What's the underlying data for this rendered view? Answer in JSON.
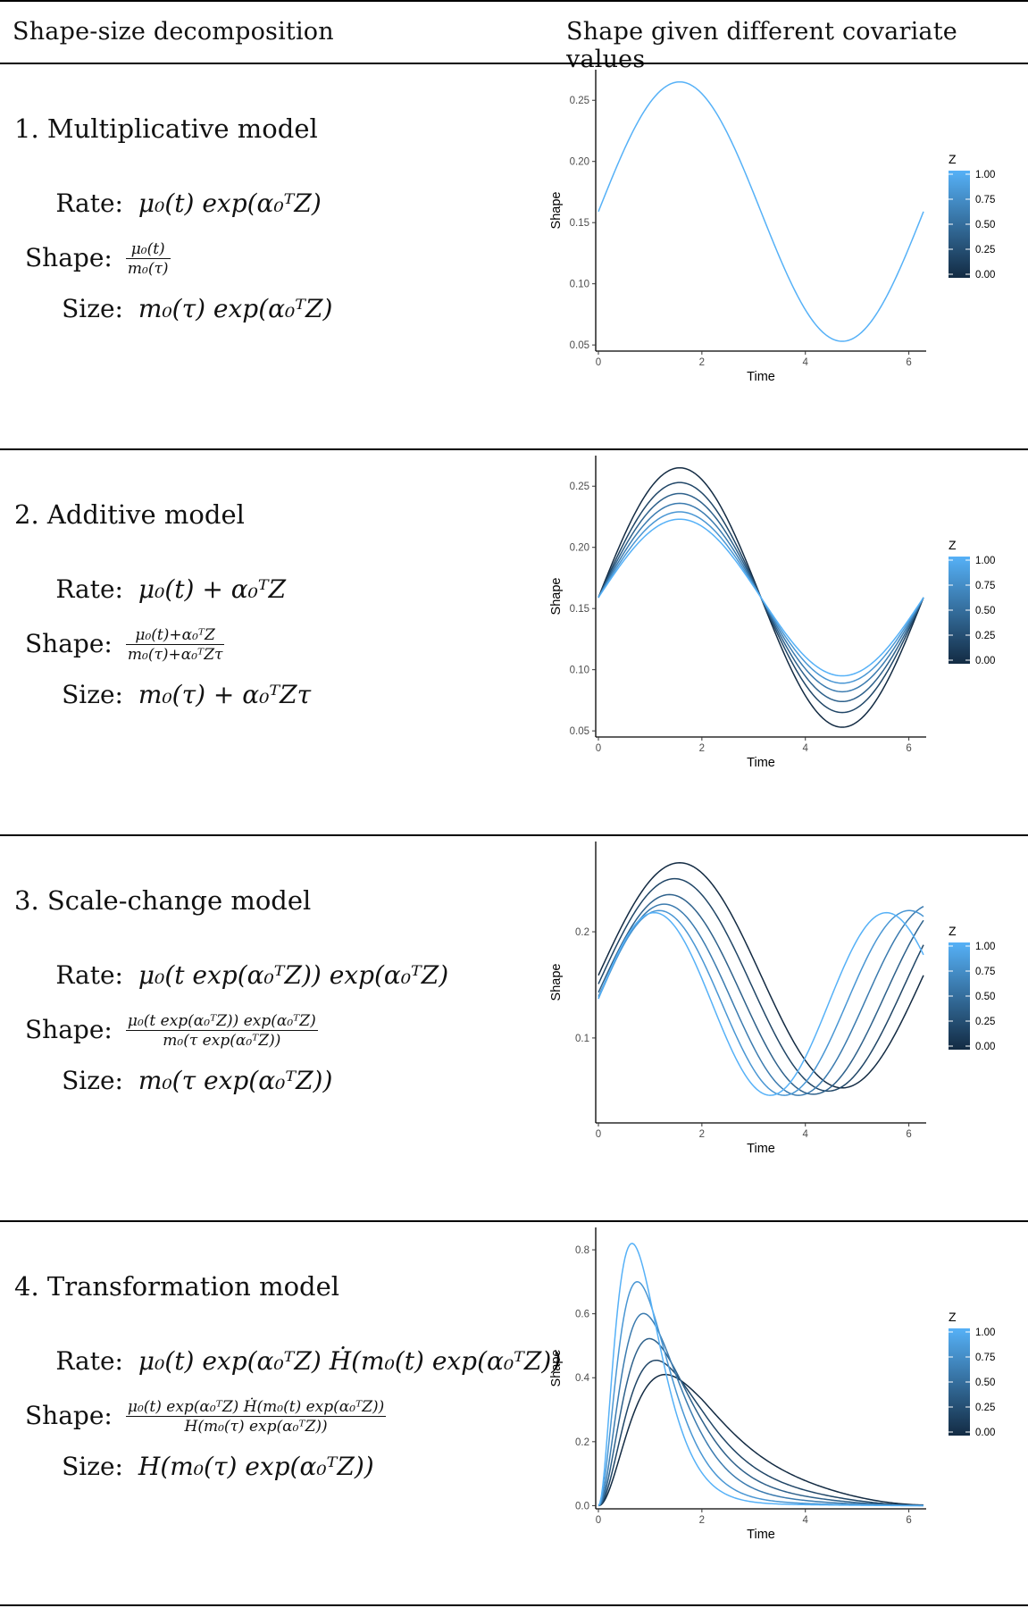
{
  "header": {
    "left": "Shape-size decomposition",
    "right": "Shape given different covariate values"
  },
  "colors": {
    "low": "#132B43",
    "high": "#56B1F7"
  },
  "models": [
    {
      "title": "1.  Multiplicative model",
      "rate_label": "Rate:",
      "rate": "μ₀(t) exp(α₀ᵀZ)",
      "shape_label": "Shape:",
      "shape_num": "μ₀(t)",
      "shape_den": "m₀(τ)",
      "size_label": "Size:",
      "size": "m₀(τ) exp(α₀ᵀZ)",
      "chart_data": {
        "type": "line",
        "x_function": "sin",
        "xlim": [
          0,
          6.2832
        ],
        "ylim": [
          0.045,
          0.275
        ],
        "xlabel": "Time",
        "ylabel": "Shape",
        "xticks": [
          0,
          2,
          4,
          6
        ],
        "yticks": [
          0.05,
          0.1,
          0.15,
          0.2,
          0.25
        ],
        "ytick_labels": [
          "0.05",
          "0.10",
          "0.15",
          "0.20",
          "0.25"
        ],
        "series": [
          {
            "z": 1.0,
            "amplitude": 0.106,
            "center": 0.159
          }
        ],
        "legend": {
          "title": "Z",
          "labels": [
            "1.00",
            "0.75",
            "0.50",
            "0.25",
            "0.00"
          ],
          "placement": "right"
        }
      }
    },
    {
      "title": "2.  Additive model",
      "rate_label": "Rate:",
      "rate": "μ₀(t) + α₀ᵀZ",
      "shape_label": "Shape:",
      "shape_num": "μ₀(t)+α₀ᵀZ",
      "shape_den": "m₀(τ)+α₀ᵀZτ",
      "size_label": "Size:",
      "size": "m₀(τ) + α₀ᵀZτ",
      "chart_data": {
        "type": "line",
        "xlim": [
          0,
          6.2832
        ],
        "ylim": [
          0.045,
          0.275
        ],
        "xlabel": "Time",
        "ylabel": "Shape",
        "xticks": [
          0,
          2,
          4,
          6
        ],
        "yticks": [
          0.05,
          0.1,
          0.15,
          0.2,
          0.25
        ],
        "ytick_labels": [
          "0.05",
          "0.10",
          "0.15",
          "0.20",
          "0.25"
        ],
        "series": [
          {
            "z": 0.0,
            "amplitude": 0.106,
            "center": 0.159
          },
          {
            "z": 0.2,
            "amplitude": 0.094,
            "center": 0.159
          },
          {
            "z": 0.4,
            "amplitude": 0.085,
            "center": 0.159
          },
          {
            "z": 0.6,
            "amplitude": 0.077,
            "center": 0.159
          },
          {
            "z": 0.8,
            "amplitude": 0.07,
            "center": 0.159
          },
          {
            "z": 1.0,
            "amplitude": 0.064,
            "center": 0.159
          }
        ],
        "legend": {
          "title": "Z",
          "labels": [
            "1.00",
            "0.75",
            "0.50",
            "0.25",
            "0.00"
          ],
          "placement": "right"
        }
      }
    },
    {
      "title": "3.  Scale-change model",
      "rate_label": "Rate:",
      "rate": "μ₀(t exp(α₀ᵀZ)) exp(α₀ᵀZ)",
      "shape_label": "Shape:",
      "shape_num": "μ₀(t exp(α₀ᵀZ)) exp(α₀ᵀZ)",
      "shape_den": "m₀(τ exp(α₀ᵀZ))",
      "size_label": "Size:",
      "size": "m₀(τ exp(α₀ᵀZ))",
      "chart_data": {
        "type": "line",
        "xlim": [
          0,
          6.2832
        ],
        "ylim": [
          0.02,
          0.285
        ],
        "xlabel": "Time",
        "ylabel": "Shape",
        "xticks": [
          0,
          2,
          4,
          6
        ],
        "yticks": [
          0.1,
          0.2
        ],
        "ytick_labels": [
          "0.1",
          "0.2"
        ],
        "series": [
          {
            "z": 0.0,
            "scale": 1.0,
            "amplitude": 0.106,
            "center": 0.159
          },
          {
            "z": 0.2,
            "scale": 1.06,
            "amplitude": 0.1,
            "center": 0.15
          },
          {
            "z": 0.4,
            "scale": 1.13,
            "amplitude": 0.094,
            "center": 0.141
          },
          {
            "z": 0.6,
            "scale": 1.21,
            "amplitude": 0.09,
            "center": 0.136
          },
          {
            "z": 0.8,
            "scale": 1.3,
            "amplitude": 0.087,
            "center": 0.133
          },
          {
            "z": 1.0,
            "scale": 1.4,
            "amplitude": 0.086,
            "center": 0.132
          }
        ],
        "legend": {
          "title": "Z",
          "labels": [
            "1.00",
            "0.75",
            "0.50",
            "0.25",
            "0.00"
          ],
          "placement": "right"
        }
      }
    },
    {
      "title": "4.  Transformation model",
      "rate_label": "Rate:",
      "rate": "μ₀(t) exp(α₀ᵀZ) Ḣ(m₀(t) exp(α₀ᵀZ))",
      "shape_label": "Shape:",
      "shape_num": "μ₀(t) exp(α₀ᵀZ) Ḣ(m₀(t) exp(α₀ᵀZ))",
      "shape_den": "H(m₀(τ) exp(α₀ᵀZ))",
      "size_label": "Size:",
      "size": "H(m₀(τ) exp(α₀ᵀZ))",
      "chart_data": {
        "type": "line",
        "xlim": [
          0,
          6.2832
        ],
        "ylim": [
          -0.01,
          0.87
        ],
        "xlabel": "Time",
        "ylabel": "Shape",
        "xticks": [
          0,
          2,
          4,
          6
        ],
        "yticks": [
          0.0,
          0.2,
          0.4,
          0.6,
          0.8
        ],
        "ytick_labels": [
          "0.0",
          "0.2",
          "0.4",
          "0.6",
          "0.8"
        ],
        "series": [
          {
            "z": 0.0,
            "peak_x": 1.25,
            "peak_y": 0.4,
            "tail": 0.045
          },
          {
            "z": 0.2,
            "peak_x": 1.1,
            "peak_y": 0.45,
            "tail": 0.03
          },
          {
            "z": 0.4,
            "peak_x": 0.98,
            "peak_y": 0.52,
            "tail": 0.02
          },
          {
            "z": 0.6,
            "peak_x": 0.87,
            "peak_y": 0.6,
            "tail": 0.012
          },
          {
            "z": 0.8,
            "peak_x": 0.75,
            "peak_y": 0.7,
            "tail": 0.006
          },
          {
            "z": 1.0,
            "peak_x": 0.65,
            "peak_y": 0.82,
            "tail": 0.003
          }
        ],
        "legend": {
          "title": "Z",
          "labels": [
            "1.00",
            "0.75",
            "0.50",
            "0.25",
            "0.00"
          ],
          "placement": "right"
        }
      }
    }
  ]
}
